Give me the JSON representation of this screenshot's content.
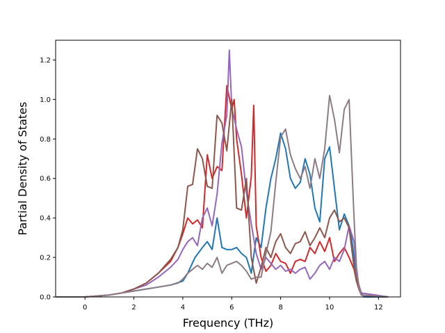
{
  "chart_data": {
    "type": "line",
    "xlabel": "Frequency (THz)",
    "ylabel": "Partial Density of States",
    "xlim": [
      -1.2,
      12.9
    ],
    "ylim": [
      0,
      1.3
    ],
    "xticks": [
      "0",
      "2",
      "4",
      "6",
      "8",
      "10",
      "12"
    ],
    "yticks": [
      "0.0",
      "0.2",
      "0.4",
      "0.6",
      "0.8",
      "1.0",
      "1.2"
    ],
    "grid": false,
    "legend": "none",
    "series": [
      {
        "color": "#1f77b4",
        "x": [
          -1.2,
          0,
          1,
          1.5,
          2,
          2.5,
          3,
          3.5,
          4,
          4.2,
          4.5,
          4.8,
          5,
          5.2,
          5.4,
          5.6,
          5.8,
          6,
          6.2,
          6.4,
          6.6,
          6.8,
          7,
          7.2,
          7.4,
          7.6,
          7.8,
          8,
          8.2,
          8.4,
          8.6,
          8.8,
          9,
          9.2,
          9.4,
          9.6,
          9.8,
          10,
          10.2,
          10.4,
          10.6,
          10.8,
          10.9,
          11,
          11.1,
          11.2,
          11.3,
          11.4,
          12.4
        ],
        "y": [
          0,
          0,
          0.01,
          0.02,
          0.03,
          0.04,
          0.05,
          0.06,
          0.08,
          0.12,
          0.2,
          0.25,
          0.28,
          0.24,
          0.4,
          0.25,
          0.24,
          0.24,
          0.25,
          0.22,
          0.2,
          0.12,
          0.3,
          0.25,
          0.45,
          0.6,
          0.7,
          0.83,
          0.75,
          0.6,
          0.55,
          0.58,
          0.7,
          0.62,
          0.45,
          0.38,
          0.7,
          0.76,
          0.55,
          0.34,
          0.42,
          0.36,
          0.3,
          0.2,
          0.1,
          0.05,
          0.02,
          0,
          0
        ]
      },
      {
        "color": "#d62728",
        "x": [
          -1.2,
          0,
          1,
          1.5,
          2,
          2.5,
          3,
          3.5,
          3.8,
          4,
          4.2,
          4.4,
          4.6,
          4.8,
          5,
          5.2,
          5.4,
          5.6,
          5.8,
          6,
          6.1,
          6.2,
          6.4,
          6.6,
          6.8,
          6.9,
          7,
          7.2,
          7.4,
          7.6,
          7.8,
          8,
          8.2,
          8.4,
          8.6,
          8.8,
          9,
          9.2,
          9.4,
          9.6,
          9.8,
          10,
          10.2,
          10.4,
          10.6,
          10.8,
          11,
          11.1,
          11.2,
          11.3,
          12.4
        ],
        "y": [
          0,
          0,
          0.01,
          0.02,
          0.04,
          0.07,
          0.12,
          0.18,
          0.25,
          0.32,
          0.4,
          0.37,
          0.39,
          0.35,
          0.72,
          0.6,
          0.66,
          0.64,
          1.07,
          0.95,
          1.0,
          0.8,
          0.62,
          0.4,
          0.61,
          0.97,
          0.36,
          0.2,
          0.13,
          0.16,
          0.22,
          0.18,
          0.17,
          0.12,
          0.18,
          0.19,
          0.18,
          0.25,
          0.22,
          0.28,
          0.23,
          0.3,
          0.18,
          0.22,
          0.25,
          0.2,
          0.14,
          0.08,
          0.04,
          0.01,
          0
        ]
      },
      {
        "color": "#9467bd",
        "x": [
          -1.2,
          0,
          1,
          1.5,
          2,
          2.5,
          3,
          3.5,
          3.8,
          4,
          4.2,
          4.4,
          4.6,
          4.8,
          5,
          5.2,
          5.4,
          5.6,
          5.8,
          5.9,
          6,
          6.2,
          6.4,
          6.6,
          6.8,
          7,
          7.2,
          7.4,
          7.6,
          7.8,
          8,
          8.2,
          8.4,
          8.6,
          8.8,
          9,
          9.2,
          9.4,
          9.6,
          9.8,
          10,
          10.2,
          10.4,
          10.6,
          10.8,
          11,
          11.1,
          11.2,
          11.3,
          12.4
        ],
        "y": [
          0,
          0,
          0.01,
          0.02,
          0.04,
          0.06,
          0.1,
          0.15,
          0.19,
          0.24,
          0.28,
          0.3,
          0.26,
          0.4,
          0.45,
          0.36,
          0.52,
          0.78,
          0.92,
          1.25,
          0.96,
          0.85,
          0.76,
          0.53,
          0.37,
          0.22,
          0.14,
          0.2,
          0.17,
          0.14,
          0.16,
          0.13,
          0.14,
          0.12,
          0.14,
          0.15,
          0.09,
          0.12,
          0.16,
          0.18,
          0.14,
          0.2,
          0.18,
          0.24,
          0.36,
          0.28,
          0.12,
          0.06,
          0.02,
          0
        ]
      },
      {
        "color": "#8c564b",
        "x": [
          -1.2,
          0,
          1,
          1.5,
          2,
          2.5,
          3,
          3.5,
          3.8,
          4,
          4.2,
          4.4,
          4.6,
          4.8,
          5,
          5.2,
          5.4,
          5.6,
          5.8,
          6,
          6.2,
          6.4,
          6.6,
          6.8,
          7,
          7.2,
          7.4,
          7.6,
          7.8,
          8,
          8.2,
          8.4,
          8.6,
          8.8,
          9,
          9.2,
          9.4,
          9.6,
          9.8,
          10,
          10.2,
          10.4,
          10.6,
          10.8,
          11,
          11.1,
          11.2,
          11.3,
          12.4
        ],
        "y": [
          0,
          0,
          0.01,
          0.02,
          0.04,
          0.07,
          0.12,
          0.19,
          0.25,
          0.34,
          0.56,
          0.57,
          0.75,
          0.7,
          0.56,
          0.55,
          0.92,
          0.88,
          0.74,
          1.0,
          0.45,
          0.44,
          0.6,
          0.2,
          0.07,
          0.15,
          0.25,
          0.2,
          0.28,
          0.32,
          0.25,
          0.22,
          0.27,
          0.28,
          0.33,
          0.26,
          0.3,
          0.35,
          0.3,
          0.4,
          0.44,
          0.38,
          0.4,
          0.35,
          0.15,
          0.08,
          0.04,
          0.01,
          0
        ]
      },
      {
        "color": "#8c7b84",
        "x": [
          -1.2,
          0,
          1,
          1.5,
          2,
          2.5,
          3,
          3.5,
          3.8,
          4,
          4.2,
          4.4,
          4.6,
          4.8,
          5,
          5.2,
          5.4,
          5.6,
          5.8,
          6,
          6.2,
          6.4,
          6.6,
          6.8,
          7,
          7.2,
          7.4,
          7.6,
          7.8,
          8,
          8.2,
          8.4,
          8.6,
          8.8,
          9,
          9.2,
          9.4,
          9.6,
          9.8,
          10,
          10.2,
          10.4,
          10.6,
          10.8,
          10.9,
          11,
          11.1,
          11.2,
          11.3,
          12.4
        ],
        "y": [
          0,
          0,
          0.01,
          0.02,
          0.03,
          0.04,
          0.05,
          0.06,
          0.07,
          0.09,
          0.12,
          0.14,
          0.16,
          0.14,
          0.17,
          0.15,
          0.2,
          0.12,
          0.16,
          0.17,
          0.18,
          0.16,
          0.13,
          0.09,
          0.1,
          0.1,
          0.22,
          0.33,
          0.58,
          0.81,
          0.85,
          0.72,
          0.65,
          0.6,
          0.66,
          0.55,
          0.7,
          0.6,
          0.75,
          1.02,
          0.9,
          0.73,
          0.95,
          1.0,
          0.7,
          0.4,
          0.15,
          0.05,
          0.01,
          0
        ]
      }
    ]
  }
}
